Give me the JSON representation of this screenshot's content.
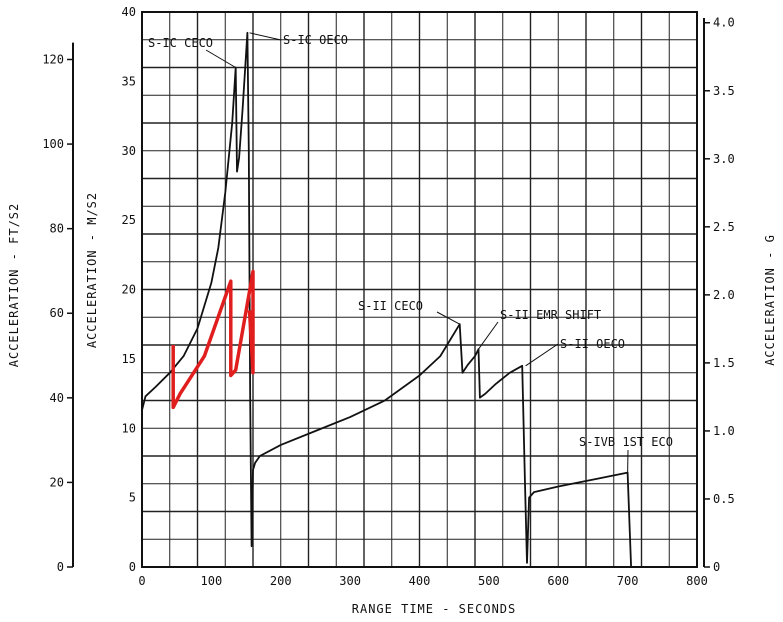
{
  "chart_data": {
    "type": "line",
    "title": "",
    "xlabel": "RANGE TIME - SECONDS",
    "ylabel": "ACCELERATION - M/S2",
    "ylabel_left_outer": "ACCELERATION - FT/S2",
    "ylabel_right": "ACCELERATION - G",
    "xlim": [
      0,
      800
    ],
    "ylim": [
      0,
      40
    ],
    "grid": true,
    "x_ticks": [
      "0",
      "100",
      "200",
      "300",
      "400",
      "500",
      "600",
      "700",
      "800"
    ],
    "y_ticks": [
      "0",
      "5",
      "10",
      "15",
      "20",
      "25",
      "30",
      "35",
      "40"
    ],
    "ft_ticks": [
      "0",
      "20",
      "40",
      "60",
      "80",
      "100",
      "120"
    ],
    "g_ticks": [
      "0",
      "0.5",
      "1.0",
      "1.5",
      "2.0",
      "2.5",
      "3.0",
      "3.5",
      "4.0"
    ],
    "series": [
      {
        "color": "#111111",
        "points": [
          [
            0,
            11.3
          ],
          [
            5,
            12.3
          ],
          [
            20,
            13.0
          ],
          [
            40,
            14.0
          ],
          [
            60,
            15.2
          ],
          [
            80,
            17.2
          ],
          [
            100,
            20.5
          ],
          [
            110,
            23.0
          ],
          [
            120,
            27.0
          ],
          [
            130,
            32.0
          ],
          [
            135,
            36.0
          ],
          [
            137,
            28.5
          ],
          [
            140,
            29.5
          ],
          [
            145,
            33.0
          ],
          [
            150,
            37.0
          ],
          [
            152,
            38.5
          ],
          [
            154,
            30.0
          ],
          [
            156,
            12.0
          ],
          [
            158,
            1.5
          ],
          [
            160,
            7.0
          ],
          [
            163,
            7.5
          ],
          [
            170,
            8.0
          ],
          [
            200,
            8.8
          ],
          [
            250,
            9.8
          ],
          [
            300,
            10.8
          ],
          [
            350,
            12.0
          ],
          [
            400,
            13.8
          ],
          [
            430,
            15.2
          ],
          [
            458,
            17.5
          ],
          [
            462,
            14.0
          ],
          [
            470,
            14.6
          ],
          [
            480,
            15.2
          ],
          [
            485,
            15.7
          ],
          [
            487,
            12.2
          ],
          [
            495,
            12.5
          ],
          [
            510,
            13.2
          ],
          [
            530,
            14.0
          ],
          [
            548,
            14.5
          ],
          [
            552,
            6.0
          ],
          [
            555,
            0.3
          ],
          [
            558,
            5.0
          ],
          [
            565,
            5.4
          ],
          [
            600,
            5.8
          ],
          [
            650,
            6.3
          ],
          [
            700,
            6.8
          ],
          [
            705,
            0.0
          ],
          [
            715,
            0.0
          ]
        ]
      },
      {
        "color": "#e01e1e",
        "points": [
          [
            45,
            16.0
          ],
          [
            45,
            11.5
          ],
          [
            55,
            12.5
          ],
          [
            90,
            15.2
          ],
          [
            128,
            20.6
          ],
          [
            128,
            13.8
          ],
          [
            135,
            14.2
          ],
          [
            160,
            21.3
          ],
          [
            160,
            14.0
          ],
          [
            155,
            18.5
          ]
        ]
      }
    ],
    "annotations": [
      {
        "text": "S-IC CECO",
        "x": 135,
        "y": 36.0
      },
      {
        "text": "S-IC OECO",
        "x": 155,
        "y": 38.5
      },
      {
        "text": "S-II CECO",
        "x": 458,
        "y": 17.5
      },
      {
        "text": "S-II EMR SHIFT",
        "x": 485,
        "y": 15.7
      },
      {
        "text": "S-II OECO",
        "x": 553,
        "y": 14.5
      },
      {
        "text": "S-IVB 1ST ECO",
        "x": 700,
        "y": 6.8
      }
    ]
  }
}
